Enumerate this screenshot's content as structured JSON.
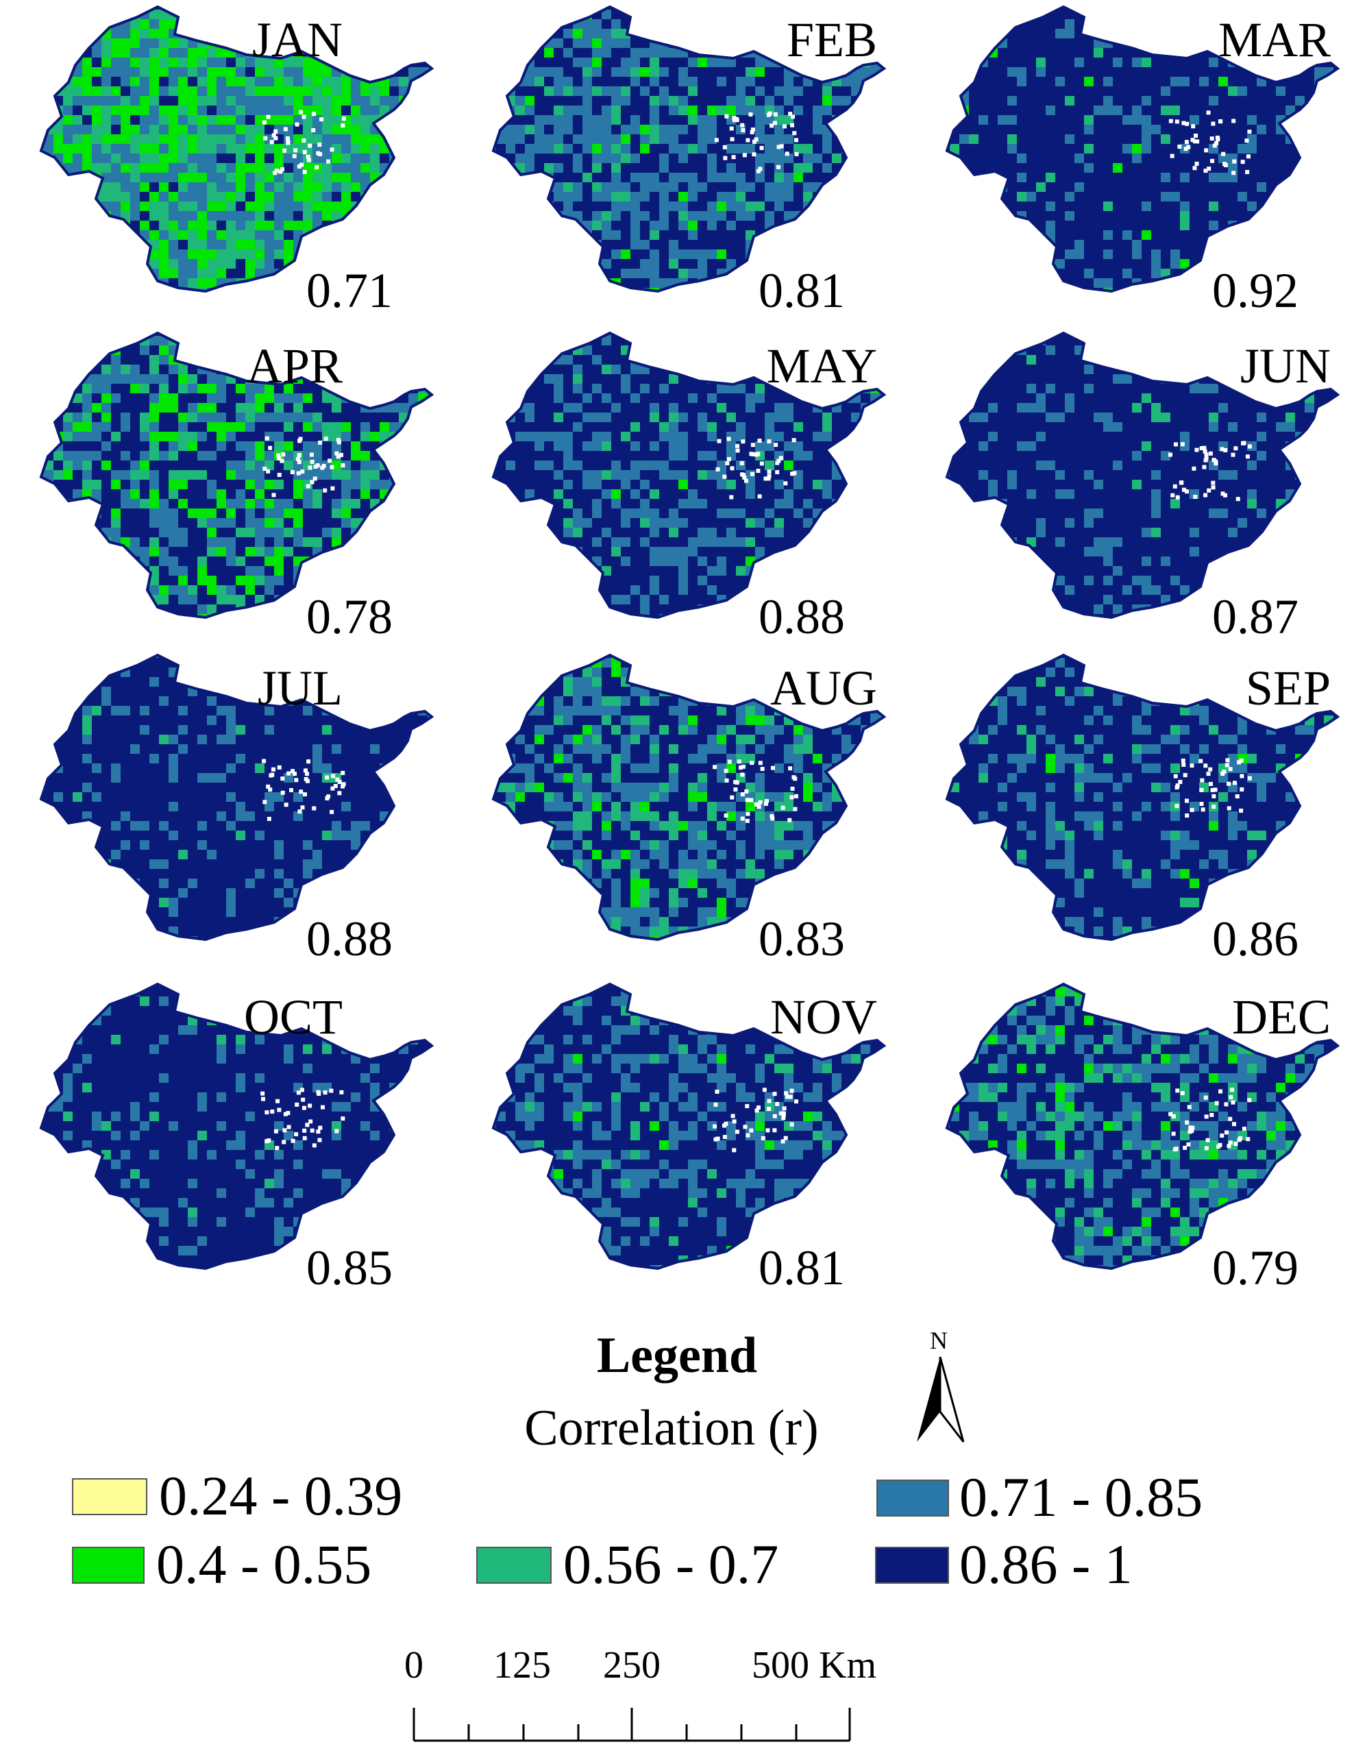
{
  "panels": [
    {
      "month": "JAN",
      "r": "0.71",
      "mix": [
        0.0,
        0.3,
        0.3,
        0.32,
        0.08
      ]
    },
    {
      "month": "FEB",
      "r": "0.81",
      "mix": [
        0.0,
        0.04,
        0.1,
        0.46,
        0.4
      ]
    },
    {
      "month": "MAR",
      "r": "0.92",
      "mix": [
        0.0,
        0.01,
        0.03,
        0.14,
        0.82
      ]
    },
    {
      "month": "APR",
      "r": "0.78",
      "mix": [
        0.0,
        0.14,
        0.16,
        0.3,
        0.4
      ]
    },
    {
      "month": "MAY",
      "r": "0.88",
      "mix": [
        0.0,
        0.01,
        0.04,
        0.3,
        0.65
      ]
    },
    {
      "month": "JUN",
      "r": "0.87",
      "mix": [
        0.0,
        0.0,
        0.02,
        0.16,
        0.82
      ]
    },
    {
      "month": "JUL",
      "r": "0.88",
      "mix": [
        0.0,
        0.0,
        0.02,
        0.14,
        0.84
      ]
    },
    {
      "month": "AUG",
      "r": "0.83",
      "mix": [
        0.0,
        0.05,
        0.17,
        0.33,
        0.45
      ]
    },
    {
      "month": "SEP",
      "r": "0.86",
      "mix": [
        0.0,
        0.01,
        0.05,
        0.24,
        0.7
      ]
    },
    {
      "month": "OCT",
      "r": "0.85",
      "mix": [
        0.0,
        0.0,
        0.02,
        0.16,
        0.82
      ]
    },
    {
      "month": "NOV",
      "r": "0.81",
      "mix": [
        0.0,
        0.01,
        0.05,
        0.34,
        0.6
      ]
    },
    {
      "month": "DEC",
      "r": "0.79",
      "mix": [
        0.0,
        0.03,
        0.14,
        0.33,
        0.5
      ]
    }
  ],
  "legend": {
    "title": "Legend",
    "subtitle": "Correlation (r)",
    "classes": [
      {
        "label": "0.24 - 0.39",
        "color": "#ffff99"
      },
      {
        "label": "0.4 - 0.55",
        "color": "#00e600"
      },
      {
        "label": "0.56 - 0.7",
        "color": "#1fb87a"
      },
      {
        "label": "0.71 - 0.85",
        "color": "#2a78a8"
      },
      {
        "label": "0.86 - 1",
        "color": "#0a1a78"
      }
    ]
  },
  "north_arrow": {
    "label": "N"
  },
  "scale_bar": {
    "labels": [
      "0",
      "125",
      "250",
      "500 Km"
    ]
  }
}
